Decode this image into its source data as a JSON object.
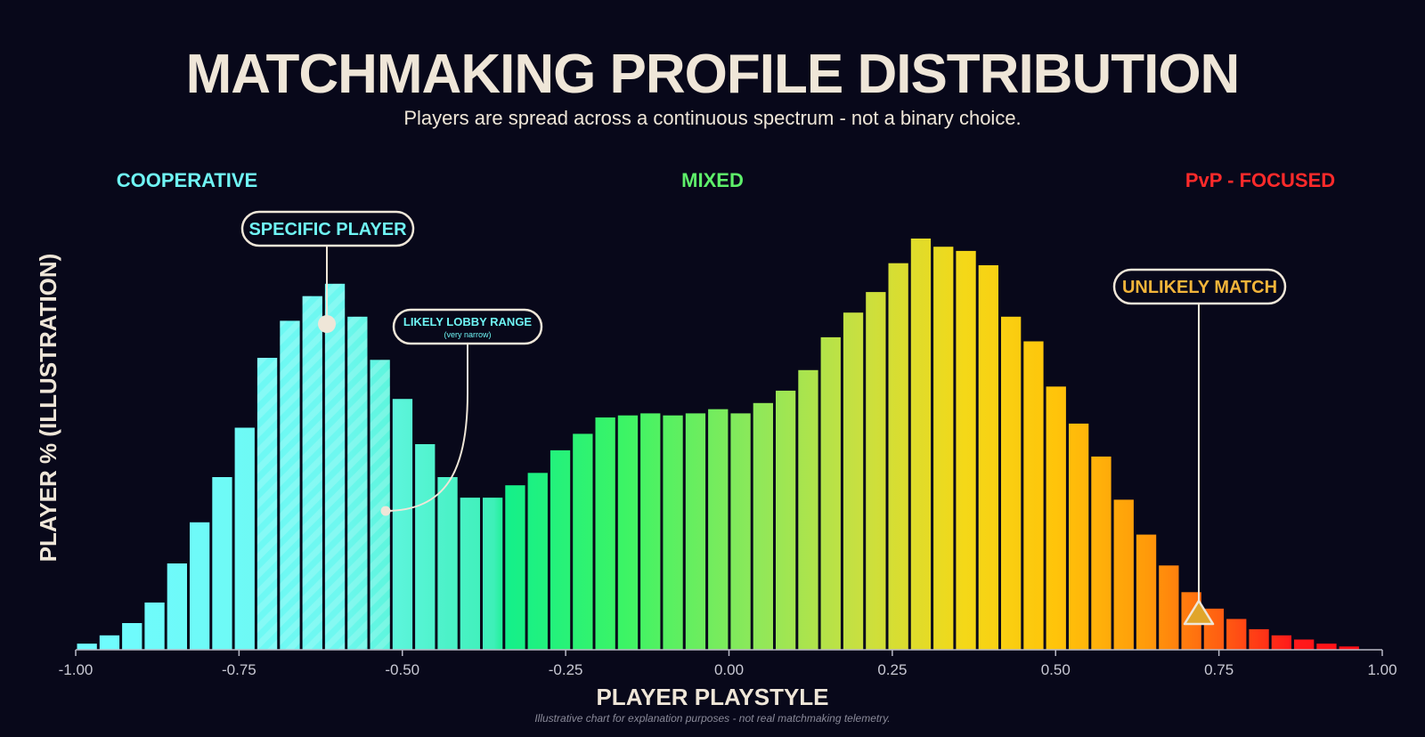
{
  "title": "MATCHMAKING PROFILE DISTRIBUTION",
  "subtitle": "Players are spread across a continuous spectrum - not a binary choice.",
  "zones": {
    "cooperative": {
      "label": "COOPERATIVE",
      "color": "#6ff5f5"
    },
    "mixed": {
      "label": "MIXED",
      "color": "#5ef06a"
    },
    "pvp": {
      "label": "PvP - FOCUSED",
      "color": "#ff2a2a"
    }
  },
  "callouts": {
    "specific_player": {
      "label": "SPECIFIC PLAYER",
      "x": -0.62
    },
    "likely_lobby": {
      "label": "LIKELY LOBBY RANGE",
      "sublabel": "(very narrow)",
      "range": [
        -0.72,
        -0.53
      ]
    },
    "unlikely_match": {
      "label": "UNLIKELY MATCH",
      "x": 0.72
    }
  },
  "footnote": "Illustrative chart for explanation purposes - not real matchmaking telemetry.",
  "chart_data": {
    "type": "bar",
    "title": "MATCHMAKING PROFILE DISTRIBUTION",
    "xlabel": "PLAYER PLAYSTYLE",
    "ylabel": "PLAYER % (ILLUSTRATION)",
    "xlim": [
      -1.0,
      1.0
    ],
    "ylim": [
      0,
      100
    ],
    "bin_width": 0.0345,
    "bin_start": -1.0,
    "xticks": [
      -1.0,
      -0.75,
      -0.5,
      -0.25,
      0.0,
      0.25,
      0.5,
      0.75,
      1.0
    ],
    "xtick_labels": [
      "-1.00",
      "-0.75",
      "-0.50",
      "-0.25",
      "0.00",
      "0.25",
      "0.50",
      "0.75",
      "1.00"
    ],
    "values": [
      1.5,
      3.5,
      6.5,
      11.5,
      21,
      31,
      42,
      54,
      71,
      80,
      86,
      89,
      81,
      70.5,
      61,
      50,
      42,
      37,
      37,
      40,
      43,
      48.5,
      52.5,
      56.5,
      57,
      57.5,
      57,
      57.5,
      58.5,
      57.5,
      60,
      63,
      68,
      76,
      82,
      87,
      94,
      100,
      98,
      97,
      93.5,
      81,
      75,
      64,
      55,
      47,
      36.5,
      28,
      20.5,
      14,
      10,
      7.5,
      5,
      3.5,
      2.5,
      1.5,
      0.8
    ]
  }
}
